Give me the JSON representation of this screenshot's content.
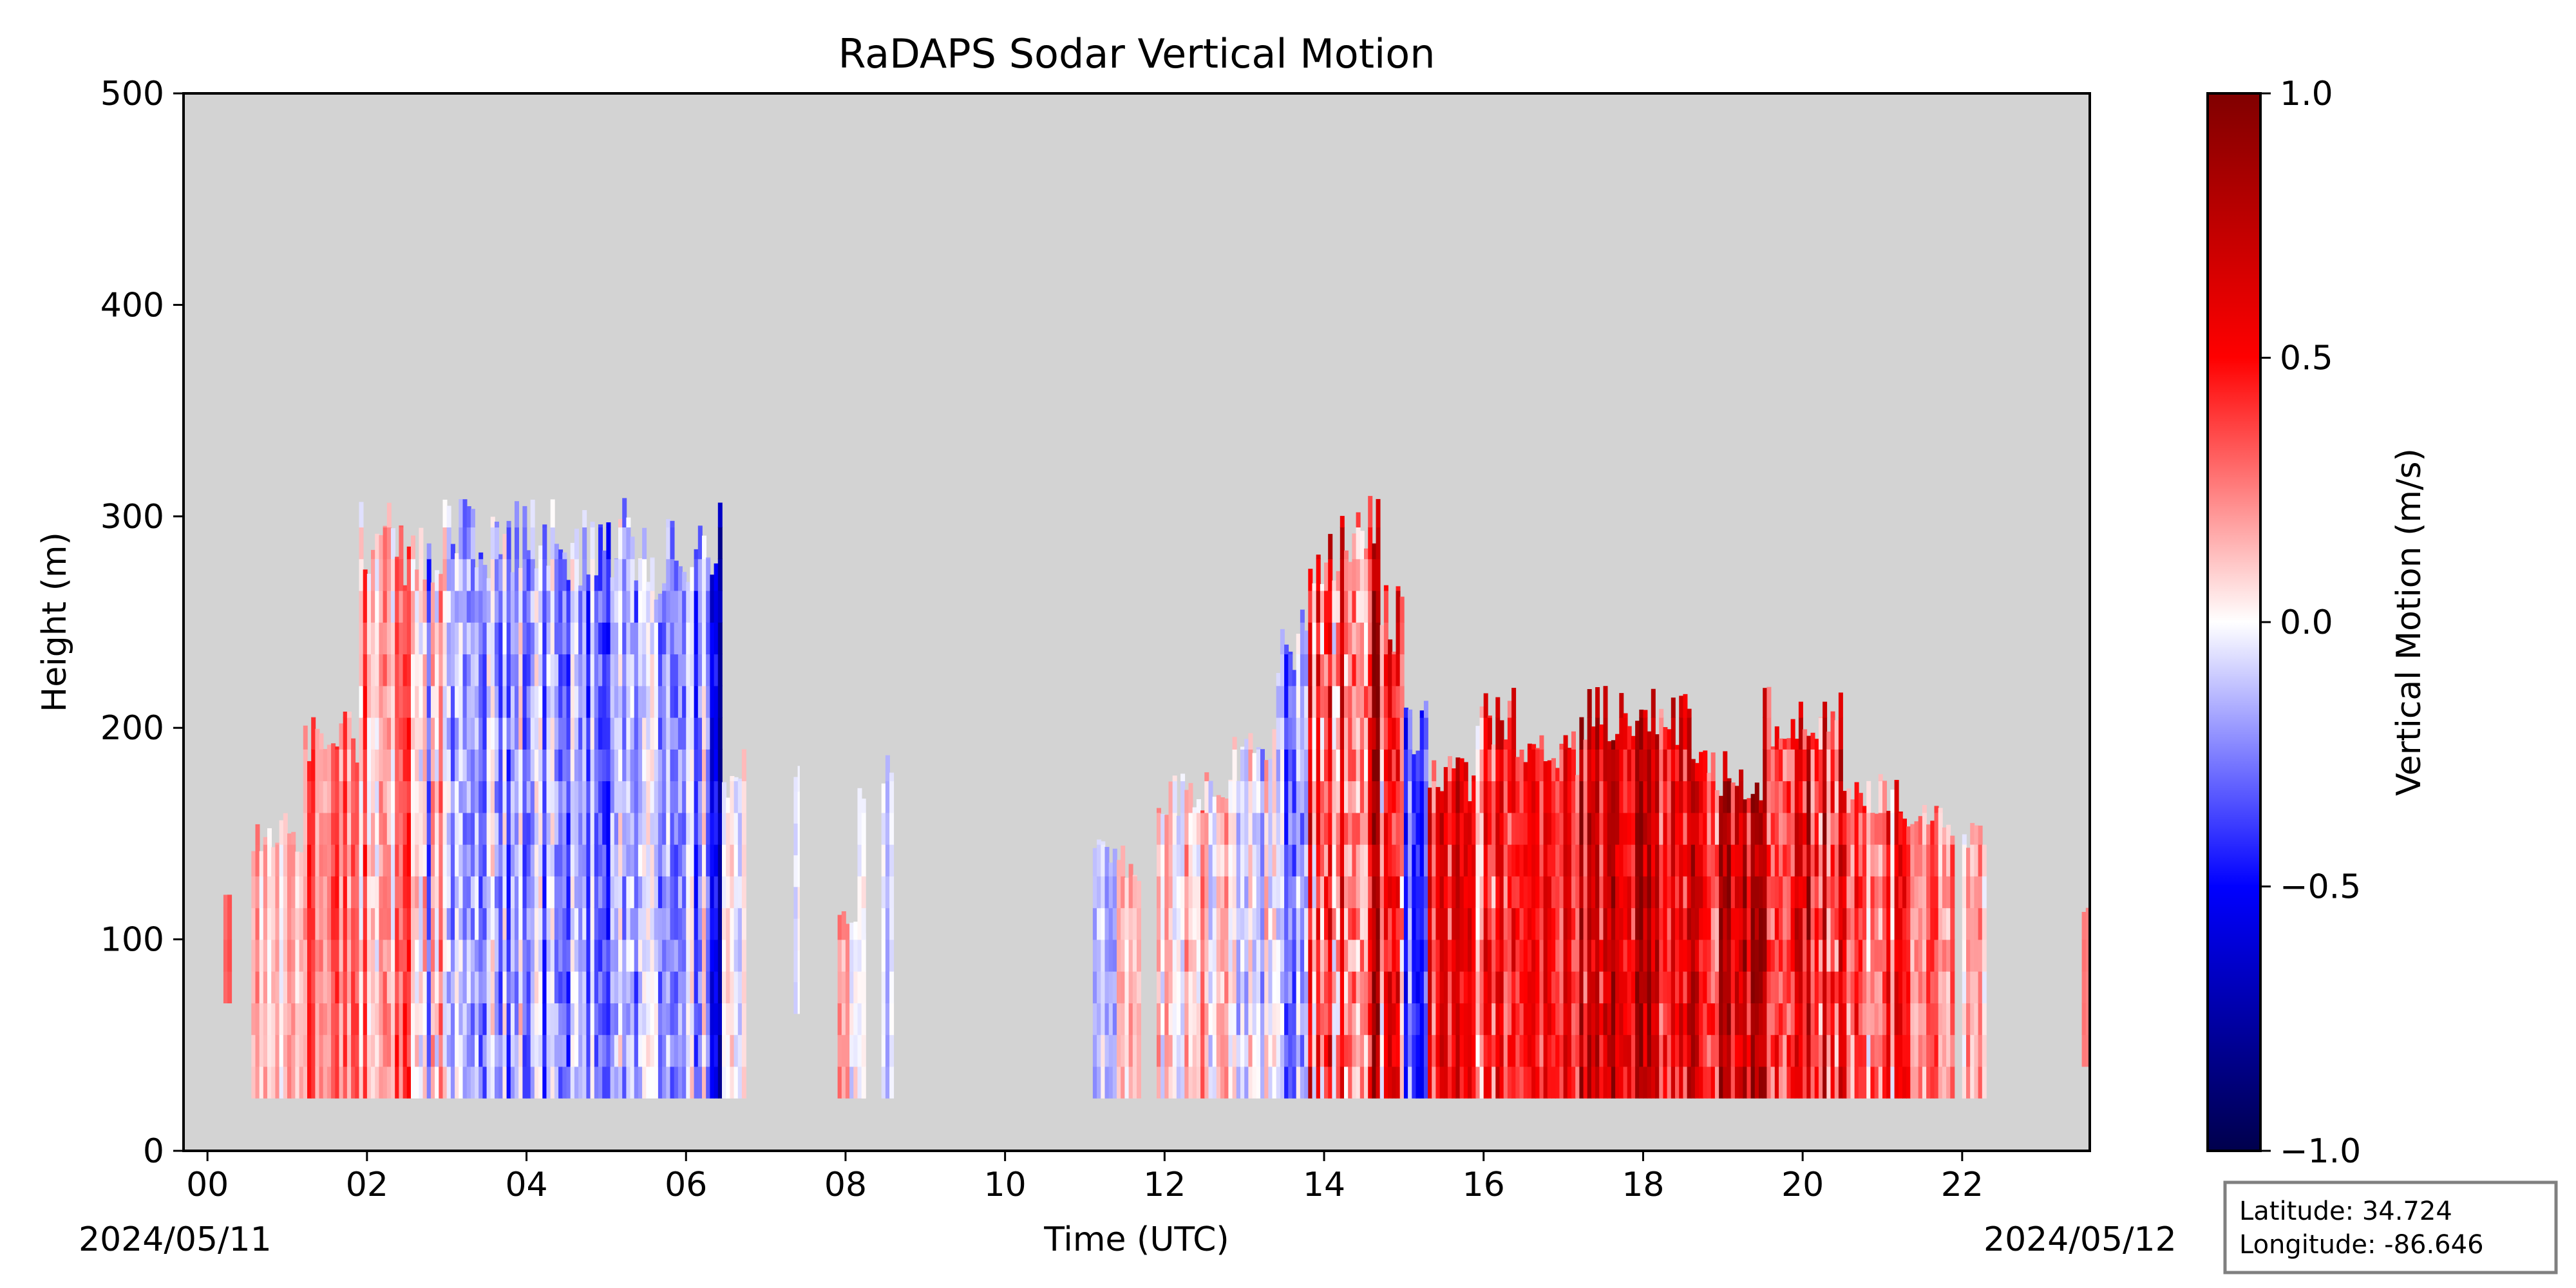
{
  "chart_data": {
    "type": "heatmap",
    "title": "RaDAPS Sodar Vertical Motion",
    "xlabel": "Time (UTC)",
    "ylabel": "Height (m)",
    "xlim": [
      -0.3,
      23.6
    ],
    "ylim": [
      0,
      500
    ],
    "x_ticks": [
      "00",
      "02",
      "04",
      "06",
      "08",
      "10",
      "12",
      "14",
      "16",
      "18",
      "20",
      "22"
    ],
    "x_tick_values": [
      0,
      2,
      4,
      6,
      8,
      10,
      12,
      14,
      16,
      18,
      20,
      22
    ],
    "y_ticks": [
      "0",
      "100",
      "200",
      "300",
      "400",
      "500"
    ],
    "y_tick_values": [
      0,
      100,
      200,
      300,
      400,
      500
    ],
    "start_date_label": "2024/05/11",
    "end_date_label": "2024/05/12",
    "background_color": "#d3d3d3",
    "colorbar": {
      "label": "Vertical Motion (m/s)",
      "range": [
        -1.0,
        1.0
      ],
      "ticks": [
        "−1.0",
        "−0.5",
        "0.0",
        "0.5",
        "1.0"
      ],
      "tick_values": [
        -1.0,
        -0.5,
        0.0,
        0.5,
        1.0
      ],
      "colormap": "seismic",
      "colors": [
        "#00004c",
        "#0000ff",
        "#ffffff",
        "#ff0000",
        "#800000"
      ]
    },
    "segments": [
      {
        "t0": 0.2,
        "t1": 0.3,
        "top": 130,
        "bottom": 70,
        "mean": 0.3,
        "amp": 0.05
      },
      {
        "t0": 0.55,
        "t1": 1.2,
        "top": 160,
        "bottom": 25,
        "mean": 0.12,
        "amp": 0.12
      },
      {
        "t0": 1.2,
        "t1": 1.9,
        "top": 210,
        "bottom": 25,
        "mean": 0.3,
        "amp": 0.15
      },
      {
        "t0": 1.9,
        "t1": 2.6,
        "top": 310,
        "bottom": 25,
        "mean": 0.2,
        "amp": 0.22
      },
      {
        "t0": 2.6,
        "t1": 3.3,
        "top": 310,
        "bottom": 25,
        "mean": -0.05,
        "amp": 0.3
      },
      {
        "t0": 3.3,
        "t1": 4.2,
        "top": 310,
        "bottom": 25,
        "mean": -0.15,
        "amp": 0.25
      },
      {
        "t0": 4.2,
        "t1": 5.3,
        "top": 310,
        "bottom": 25,
        "mean": -0.2,
        "amp": 0.25
      },
      {
        "t0": 5.3,
        "t1": 6.3,
        "top": 300,
        "bottom": 25,
        "mean": -0.18,
        "amp": 0.25
      },
      {
        "t0": 6.3,
        "t1": 6.45,
        "top": 310,
        "bottom": 25,
        "mean": -0.6,
        "amp": 0.2
      },
      {
        "t0": 6.45,
        "t1": 6.75,
        "top": 190,
        "bottom": 25,
        "mean": 0.0,
        "amp": 0.15
      },
      {
        "t0": 7.35,
        "t1": 7.42,
        "top": 185,
        "bottom": 65,
        "mean": -0.1,
        "amp": 0.1
      },
      {
        "t0": 7.9,
        "t1": 8.25,
        "top": 115,
        "bottom": 25,
        "mean": 0.1,
        "amp": 0.2
      },
      {
        "t0": 8.15,
        "t1": 8.25,
        "top": 175,
        "bottom": 25,
        "mean": 0.0,
        "amp": 0.1
      },
      {
        "t0": 8.45,
        "t1": 8.6,
        "top": 190,
        "bottom": 25,
        "mean": -0.1,
        "amp": 0.1
      },
      {
        "t0": 11.1,
        "t1": 11.4,
        "top": 150,
        "bottom": 25,
        "mean": -0.08,
        "amp": 0.15
      },
      {
        "t0": 11.4,
        "t1": 11.7,
        "top": 145,
        "bottom": 25,
        "mean": 0.05,
        "amp": 0.15
      },
      {
        "t0": 11.9,
        "t1": 12.8,
        "top": 180,
        "bottom": 25,
        "mean": 0.1,
        "amp": 0.2
      },
      {
        "t0": 12.8,
        "t1": 13.4,
        "top": 200,
        "bottom": 25,
        "mean": -0.05,
        "amp": 0.2
      },
      {
        "t0": 13.4,
        "t1": 13.8,
        "top": 260,
        "bottom": 25,
        "mean": -0.15,
        "amp": 0.25
      },
      {
        "t0": 13.8,
        "t1": 14.2,
        "top": 310,
        "bottom": 25,
        "mean": 0.2,
        "amp": 0.45
      },
      {
        "t0": 14.2,
        "t1": 14.7,
        "top": 310,
        "bottom": 25,
        "mean": 0.5,
        "amp": 0.4
      },
      {
        "t0": 14.7,
        "t1": 15.0,
        "top": 270,
        "bottom": 25,
        "mean": 0.4,
        "amp": 0.45
      },
      {
        "t0": 15.0,
        "t1": 15.3,
        "top": 215,
        "bottom": 25,
        "mean": -0.3,
        "amp": 0.2
      },
      {
        "t0": 15.3,
        "t1": 15.9,
        "top": 190,
        "bottom": 25,
        "mean": 0.5,
        "amp": 0.25
      },
      {
        "t0": 15.9,
        "t1": 16.4,
        "top": 220,
        "bottom": 25,
        "mean": 0.35,
        "amp": 0.35
      },
      {
        "t0": 16.4,
        "t1": 17.2,
        "top": 200,
        "bottom": 25,
        "mean": 0.5,
        "amp": 0.2
      },
      {
        "t0": 17.2,
        "t1": 18.6,
        "top": 220,
        "bottom": 25,
        "mean": 0.6,
        "amp": 0.3
      },
      {
        "t0": 18.6,
        "t1": 19.5,
        "top": 190,
        "bottom": 25,
        "mean": 0.6,
        "amp": 0.35
      },
      {
        "t0": 19.5,
        "t1": 20.5,
        "top": 220,
        "bottom": 25,
        "mean": 0.55,
        "amp": 0.35
      },
      {
        "t0": 20.5,
        "t1": 21.3,
        "top": 180,
        "bottom": 25,
        "mean": 0.3,
        "amp": 0.3
      },
      {
        "t0": 21.3,
        "t1": 21.9,
        "top": 170,
        "bottom": 25,
        "mean": 0.25,
        "amp": 0.2
      },
      {
        "t0": 22.0,
        "t1": 22.3,
        "top": 160,
        "bottom": 25,
        "mean": 0.15,
        "amp": 0.15
      },
      {
        "t0": 23.5,
        "t1": 23.6,
        "top": 115,
        "bottom": 40,
        "mean": 0.3,
        "amp": 0.05
      }
    ],
    "grid": false,
    "legend": "colorbar-right"
  },
  "info_box": {
    "latitude": "Latitude: 34.724",
    "longitude": "Longitude: -86.646"
  }
}
